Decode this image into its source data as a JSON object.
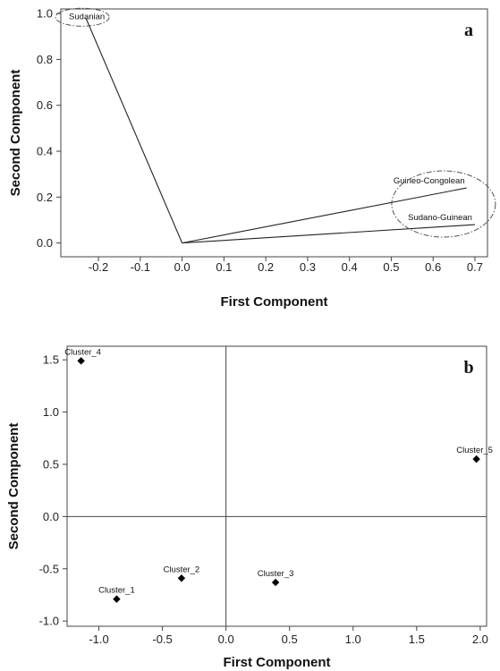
{
  "chart_data": [
    {
      "type": "line",
      "panel_label": "a",
      "xlabel": "First Component",
      "ylabel": "Second Component",
      "xlim": [
        -0.29,
        0.73
      ],
      "ylim": [
        -0.06,
        1.02
      ],
      "xticks": [
        "-0.2",
        "-0.1",
        "0.0",
        "0.1",
        "0.2",
        "0.3",
        "0.4",
        "0.5",
        "0.6",
        "0.7"
      ],
      "xtick_values": [
        -0.2,
        -0.1,
        0.0,
        0.1,
        0.2,
        0.3,
        0.4,
        0.5,
        0.6,
        0.7
      ],
      "yticks": [
        "0.0",
        "0.2",
        "0.4",
        "0.6",
        "0.8",
        "1.0"
      ],
      "ytick_values": [
        0.0,
        0.2,
        0.4,
        0.6,
        0.8,
        1.0
      ],
      "grid": false,
      "vectors": [
        {
          "name": "Sudanian",
          "x": -0.23,
          "y": 0.98
        },
        {
          "name": "Guineo-Congolean",
          "x": 0.68,
          "y": 0.24
        },
        {
          "name": "Sudano-Guinean",
          "x": 0.7,
          "y": 0.08
        }
      ],
      "annotations": [
        "dash-dot ellipse around Sudanian",
        "dash-dot ellipse around Guineo-Congolean and Sudano-Guinean"
      ]
    },
    {
      "type": "scatter",
      "panel_label": "b",
      "xlabel": "First Component",
      "ylabel": "Second Component",
      "xlim": [
        -1.25,
        2.05
      ],
      "ylim": [
        -1.05,
        1.63
      ],
      "xticks": [
        "-1.0",
        "-0.5",
        "0.0",
        "0.5",
        "1.0",
        "1.5",
        "2.0"
      ],
      "xtick_values": [
        -1.0,
        -0.5,
        0.0,
        0.5,
        1.0,
        1.5,
        2.0
      ],
      "yticks": [
        "-1.0",
        "-0.5",
        "0.0",
        "0.5",
        "1.0",
        "1.5"
      ],
      "ytick_values": [
        -1.0,
        -0.5,
        0.0,
        0.5,
        1.0,
        1.5
      ],
      "grid": false,
      "reference_lines": {
        "x": 0,
        "y": 0
      },
      "points": [
        {
          "name": "Cluster_1",
          "x": -0.86,
          "y": -0.79
        },
        {
          "name": "Cluster_2",
          "x": -0.35,
          "y": -0.59
        },
        {
          "name": "Cluster_3",
          "x": 0.39,
          "y": -0.63
        },
        {
          "name": "Cluster_4",
          "x": -1.14,
          "y": 1.49
        },
        {
          "name": "Cluster_5",
          "x": 1.97,
          "y": 0.55
        }
      ]
    }
  ]
}
